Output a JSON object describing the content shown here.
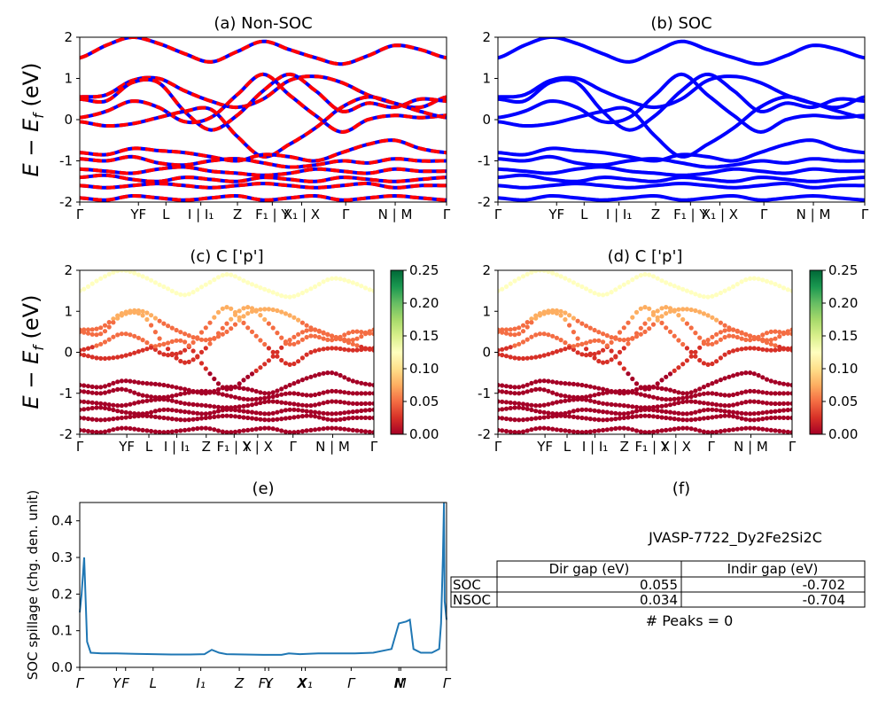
{
  "figure_title": "",
  "chart_data": [
    {
      "id": "a",
      "type": "line",
      "title": "(a) Non-SOC",
      "ylabel": "E − E_f (eV)",
      "ylim": [
        -2,
        2
      ],
      "yticks": [
        -2,
        -1,
        0,
        1,
        2
      ],
      "xticks": [
        "Γ",
        "Y",
        "F",
        "L",
        "I",
        "|",
        "I1",
        "Z",
        "F1",
        "|",
        "Y1",
        "X1",
        "|",
        "X",
        "Γ",
        "N",
        "|",
        "M",
        "Γ"
      ],
      "xtick_labels_shown": [
        "Γ",
        "YF",
        "L",
        "I | I₁",
        "Z",
        "F₁ | Y",
        "X₁ | X",
        "Γ",
        "N | M",
        "Γ"
      ],
      "series_colors": [
        "#0000ff",
        "#ff0000"
      ],
      "bands": [
        [
          0.55,
          0.6,
          0.95,
          1.0,
          0.7,
          0.45,
          0.3,
          0.5,
          0.95,
          1.05,
          0.9,
          0.6,
          0.4,
          0.3,
          0.55
        ],
        [
          0.5,
          0.45,
          0.9,
          0.9,
          0.2,
          -0.25,
          0.1,
          0.7,
          1.1,
          0.7,
          0.2,
          0.4,
          0.3,
          0.5,
          0.45
        ],
        [
          0.05,
          0.2,
          0.45,
          0.3,
          -0.05,
          0.05,
          0.6,
          1.1,
          0.6,
          0.1,
          -0.3,
          0.0,
          0.1,
          0.05,
          0.1
        ],
        [
          -0.05,
          -0.15,
          -0.1,
          0.05,
          0.2,
          0.25,
          -0.4,
          -0.9,
          -0.6,
          -0.2,
          0.3,
          0.55,
          0.4,
          0.2,
          0.05
        ],
        [
          -0.8,
          -0.85,
          -0.7,
          -0.75,
          -0.8,
          -0.9,
          -1.0,
          -0.85,
          -0.9,
          -1.0,
          -0.8,
          -0.6,
          -0.5,
          -0.7,
          -0.8
        ],
        [
          -0.95,
          -1.0,
          -0.9,
          -1.05,
          -1.1,
          -1.0,
          -0.95,
          -1.05,
          -1.15,
          -1.1,
          -1.0,
          -1.05,
          -0.95,
          -1.0,
          -1.0
        ],
        [
          -1.2,
          -1.25,
          -1.3,
          -1.2,
          -1.15,
          -1.25,
          -1.3,
          -1.35,
          -1.3,
          -1.2,
          -1.25,
          -1.3,
          -1.2,
          -1.25,
          -1.25
        ],
        [
          -1.4,
          -1.35,
          -1.45,
          -1.5,
          -1.4,
          -1.45,
          -1.5,
          -1.4,
          -1.45,
          -1.5,
          -1.4,
          -1.45,
          -1.5,
          -1.45,
          -1.4
        ],
        [
          -1.6,
          -1.65,
          -1.6,
          -1.55,
          -1.6,
          -1.65,
          -1.6,
          -1.55,
          -1.6,
          -1.65,
          -1.6,
          -1.55,
          -1.65,
          -1.6,
          -1.6
        ],
        [
          -1.9,
          -1.95,
          -1.85,
          -1.9,
          -1.95,
          -1.9,
          -1.85,
          -1.95,
          -1.9,
          -1.85,
          -1.95,
          -1.9,
          -1.85,
          -1.9,
          -1.95
        ],
        [
          1.5,
          1.8,
          2.0,
          1.85,
          1.6,
          1.4,
          1.65,
          1.9,
          1.7,
          1.5,
          1.35,
          1.55,
          1.8,
          1.7,
          1.5
        ]
      ]
    },
    {
      "id": "b",
      "type": "line",
      "title": "(b) SOC",
      "ylim": [
        -2,
        2
      ],
      "yticks": [
        -2,
        -1,
        0,
        1,
        2
      ],
      "xtick_labels_shown": [
        "Γ",
        "YF",
        "L",
        "I | I₁",
        "Z",
        "F₁ | Y",
        "X₁ | X",
        "Γ",
        "N | M",
        "Γ"
      ],
      "series_colors": [
        "#0000ff"
      ],
      "bands_same_as": "a"
    },
    {
      "id": "c",
      "type": "scatter",
      "title": "(c)  C ['p']",
      "ylabel": "E − E_f (eV)",
      "ylim": [
        -2,
        2
      ],
      "yticks": [
        -2,
        -1,
        0,
        1,
        2
      ],
      "xtick_labels_shown": [
        "Γ",
        "YF",
        "L",
        "I | I₁",
        "Z",
        "F₁ | X",
        "Y | X",
        "Γ",
        "N | M",
        "Γ"
      ],
      "colorbar": {
        "cmap": "RdYlGn",
        "range": [
          0.0,
          0.25
        ],
        "ticks": [
          "0.00",
          "0.05",
          "0.10",
          "0.15",
          "0.20",
          "0.25"
        ]
      },
      "bands_same_as": "a"
    },
    {
      "id": "d",
      "type": "scatter",
      "title": "(d) C ['p']",
      "ylim": [
        -2,
        2
      ],
      "yticks": [
        -2,
        -1,
        0,
        1,
        2
      ],
      "xtick_labels_shown": [
        "Γ",
        "YF",
        "L",
        "I | I₁",
        "Z",
        "F₁ | X",
        "Y | X",
        "Γ",
        "N | M",
        "Γ"
      ],
      "colorbar": {
        "cmap": "RdYlGn",
        "range": [
          0.0,
          0.25
        ],
        "ticks": [
          "0.00",
          "0.05",
          "0.10",
          "0.15",
          "0.20",
          "0.25"
        ]
      },
      "bands_same_as": "a"
    },
    {
      "id": "e",
      "type": "line",
      "title": "(e)",
      "ylabel": "SOC spillage (chg. den. unit)",
      "ylim": [
        0.0,
        0.45
      ],
      "yticks": [
        "0.0",
        "0.1",
        "0.2",
        "0.3",
        "0.4"
      ],
      "xlim": [
        0,
        1
      ],
      "xtick_labels_shown": [
        "Γ",
        "Y",
        "F",
        "L",
        "I₁",
        "Z",
        "F₁",
        "Y",
        "X",
        "X₁",
        "Γ",
        "N",
        "M",
        "Γ"
      ],
      "series_colors": [
        "#1f77b4"
      ],
      "x": [
        0.0,
        0.005,
        0.012,
        0.02,
        0.03,
        0.06,
        0.1,
        0.15,
        0.2,
        0.25,
        0.3,
        0.34,
        0.36,
        0.38,
        0.4,
        0.45,
        0.5,
        0.55,
        0.57,
        0.6,
        0.65,
        0.7,
        0.75,
        0.8,
        0.85,
        0.87,
        0.89,
        0.9,
        0.91,
        0.93,
        0.96,
        0.97,
        0.98,
        0.985,
        0.99,
        0.993,
        0.995,
        1.0
      ],
      "y": [
        0.15,
        0.2,
        0.3,
        0.07,
        0.04,
        0.038,
        0.038,
        0.037,
        0.036,
        0.035,
        0.035,
        0.036,
        0.048,
        0.04,
        0.036,
        0.035,
        0.034,
        0.034,
        0.038,
        0.036,
        0.038,
        0.038,
        0.038,
        0.04,
        0.05,
        0.12,
        0.125,
        0.13,
        0.05,
        0.04,
        0.04,
        0.045,
        0.05,
        0.12,
        0.3,
        0.45,
        0.18,
        0.13
      ]
    }
  ],
  "panel_f": {
    "title": "(f)",
    "material": "JVASP-7722_Dy2Fe2Si2C",
    "table": {
      "headers": [
        "",
        "Dir gap (eV)",
        "Indir gap (eV)"
      ],
      "rows": [
        [
          "SOC",
          "0.055",
          "-0.702"
        ],
        [
          "NSOC",
          "0.034",
          "-0.704"
        ]
      ]
    },
    "peaks": "# Peaks = 0"
  }
}
